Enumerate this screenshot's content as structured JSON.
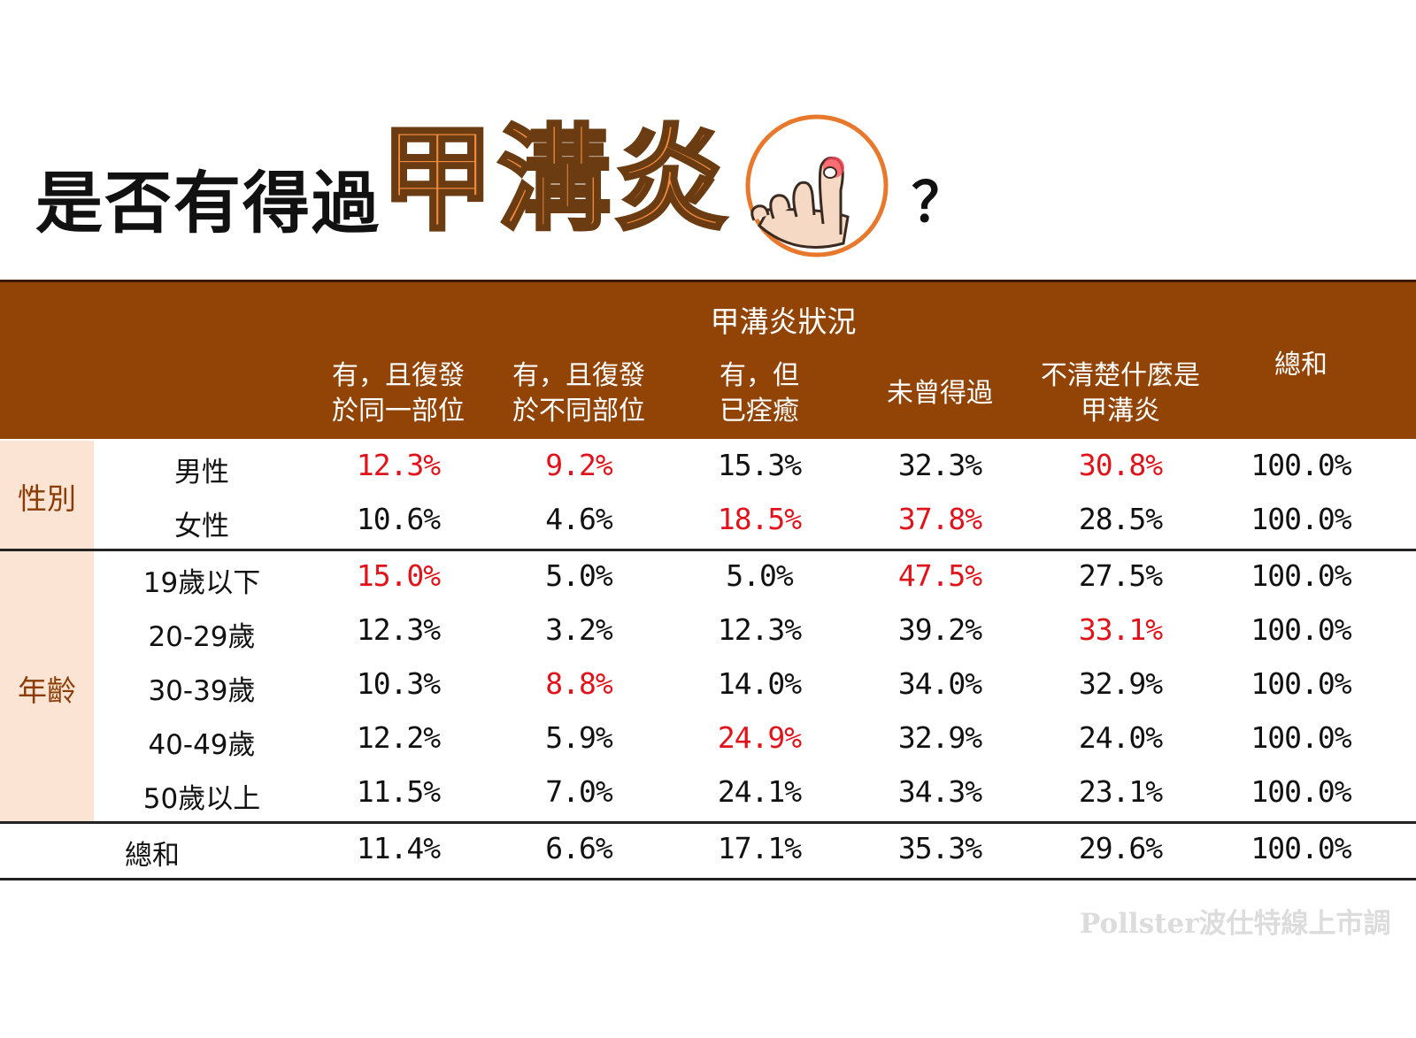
{
  "title": {
    "prefix": "是否有得過",
    "highlight": "甲溝炎",
    "suffix": "？"
  },
  "watermark": "Pollster波仕特線上市調",
  "chart_data": {
    "type": "table",
    "group_header": "甲溝炎狀況",
    "columns": [
      {
        "line1": "有，且復發",
        "line2": "於同一部位"
      },
      {
        "line1": "有，且復發",
        "line2": "於不同部位"
      },
      {
        "line1": "有，但",
        "line2": "已痊癒"
      },
      {
        "line1": "未曾得過",
        "line2": ""
      },
      {
        "line1": "不清楚什麼是",
        "line2": "甲溝炎"
      },
      {
        "line1": "總和",
        "line2": ""
      }
    ],
    "groups": [
      {
        "label": "性別",
        "rows": [
          {
            "label": "男性",
            "values": [
              "12.3%",
              "9.2%",
              "15.3%",
              "32.3%",
              "30.8%",
              "100.0%"
            ],
            "highlight": [
              0,
              1,
              4
            ]
          },
          {
            "label": "女性",
            "values": [
              "10.6%",
              "4.6%",
              "18.5%",
              "37.8%",
              "28.5%",
              "100.0%"
            ],
            "highlight": [
              2,
              3
            ]
          }
        ]
      },
      {
        "label": "年齡",
        "rows": [
          {
            "label": "19歲以下",
            "values": [
              "15.0%",
              "5.0%",
              "5.0%",
              "47.5%",
              "27.5%",
              "100.0%"
            ],
            "highlight": [
              0,
              3
            ]
          },
          {
            "label": "20-29歲",
            "values": [
              "12.3%",
              "3.2%",
              "12.3%",
              "39.2%",
              "33.1%",
              "100.0%"
            ],
            "highlight": [
              4
            ]
          },
          {
            "label": "30-39歲",
            "values": [
              "10.3%",
              "8.8%",
              "14.0%",
              "34.0%",
              "32.9%",
              "100.0%"
            ],
            "highlight": [
              1
            ]
          },
          {
            "label": "40-49歲",
            "values": [
              "12.2%",
              "5.9%",
              "24.9%",
              "32.9%",
              "24.0%",
              "100.0%"
            ],
            "highlight": [
              2
            ]
          },
          {
            "label": "50歲以上",
            "values": [
              "11.5%",
              "7.0%",
              "24.1%",
              "34.3%",
              "23.1%",
              "100.0%"
            ],
            "highlight": []
          }
        ]
      }
    ],
    "total_row": {
      "label": "總和",
      "values": [
        "11.4%",
        "6.6%",
        "17.1%",
        "35.3%",
        "29.6%",
        "100.0%"
      ]
    },
    "colors": {
      "header_bg": "#924306",
      "group_band": "#fbe4d3",
      "group_text": "#8b3c05",
      "highlight": "#e0131b",
      "title_accent": "#f08a3c"
    }
  }
}
